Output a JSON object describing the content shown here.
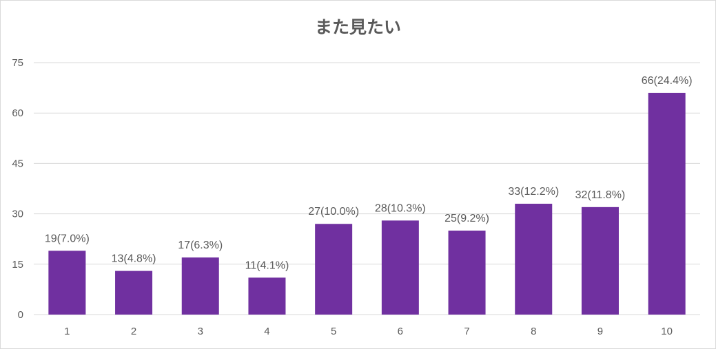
{
  "chart_data": {
    "type": "bar",
    "title": "また見たい",
    "categories": [
      "1",
      "2",
      "3",
      "4",
      "5",
      "6",
      "7",
      "8",
      "9",
      "10"
    ],
    "values": [
      19,
      13,
      17,
      11,
      27,
      28,
      25,
      33,
      32,
      66
    ],
    "data_labels": [
      "19(7.0%)",
      "13(4.8%)",
      "17(6.3%)",
      "11(4.1%)",
      "27(10.0%)",
      "28(10.3%)",
      "25(9.2%)",
      "33(12.2%)",
      "32(11.8%)",
      "66(24.4%)"
    ],
    "ylim": [
      0,
      75
    ],
    "yticks": [
      "0",
      "15",
      "30",
      "45",
      "60",
      "75"
    ],
    "grid": true,
    "legend": "none",
    "bar_color": "#7030a0",
    "grid_color": "#d9d9d9",
    "text_color": "#595959"
  }
}
